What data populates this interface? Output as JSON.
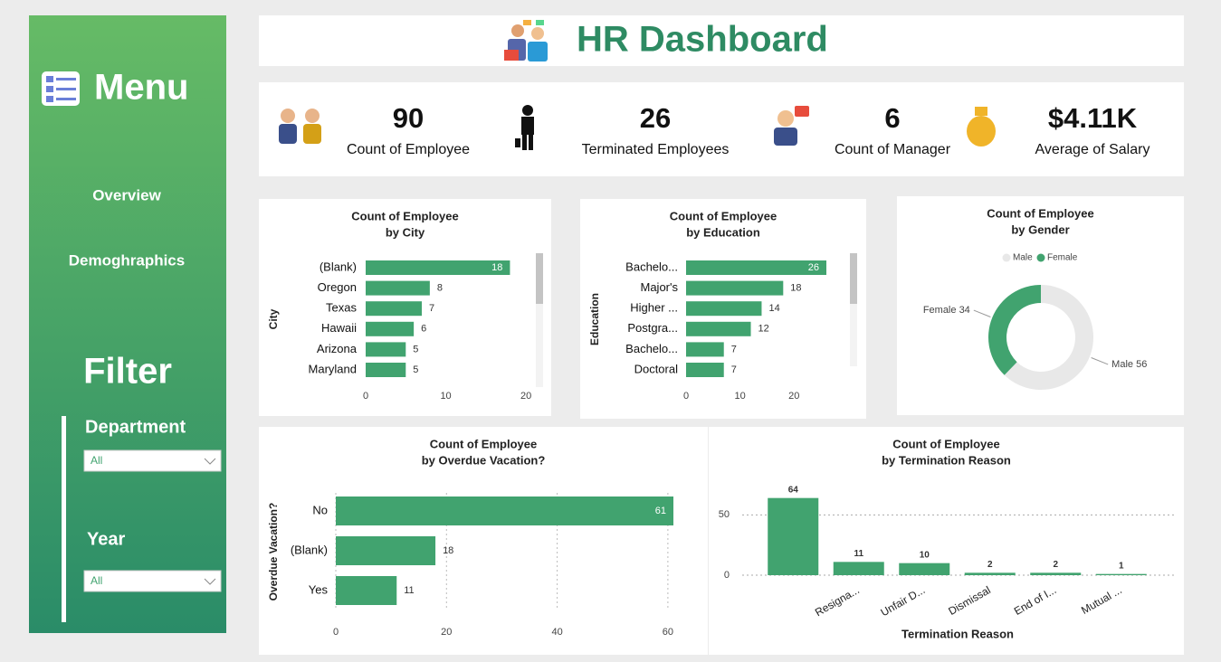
{
  "header": {
    "title": "HR Dashboard"
  },
  "menu": {
    "title": "Menu",
    "items": [
      "Overview",
      "Demoghraphics"
    ]
  },
  "filter": {
    "title": "Filter",
    "slicers": [
      {
        "label": "Department",
        "value": "All"
      },
      {
        "label": "Year",
        "value": "All"
      }
    ]
  },
  "kpis": [
    {
      "value": "90",
      "label": "Count of Employee"
    },
    {
      "value": "26",
      "label": "Terminated Employees"
    },
    {
      "value": "6",
      "label": "Count of Manager"
    },
    {
      "value": "$4.11K",
      "label": "Average of Salary"
    }
  ],
  "chart_data": [
    {
      "type": "bar",
      "orientation": "horizontal",
      "title": "Count of Employee",
      "subtitle": "by City",
      "y_label": "City",
      "categories": [
        "(Blank)",
        "Oregon",
        "Texas",
        "Hawaii",
        "Arizona",
        "Maryland"
      ],
      "values": [
        18,
        8,
        7,
        6,
        5,
        5
      ],
      "xlim": [
        0,
        21
      ],
      "xticks": [
        0,
        10,
        20
      ],
      "color": "#41a36f",
      "grid": false
    },
    {
      "type": "bar",
      "orientation": "horizontal",
      "title": "Count of Employee",
      "subtitle": "by Education",
      "y_label": "Education",
      "categories": [
        "Bachelo...",
        "Major's",
        "Higher ...",
        "Postgra...",
        "Bachelo...",
        "Doctoral"
      ],
      "values": [
        26,
        18,
        14,
        12,
        7,
        7
      ],
      "xlim": [
        0,
        26
      ],
      "xticks": [
        0,
        10,
        20
      ],
      "color": "#41a36f",
      "grid": false
    },
    {
      "type": "pie",
      "donut": true,
      "title": "Count of Employee",
      "subtitle": "by Gender",
      "categories": [
        "Male",
        "Female"
      ],
      "values": [
        56,
        34
      ],
      "colors": [
        "#e8e8e8",
        "#41a36f"
      ],
      "legend": "top"
    },
    {
      "type": "bar",
      "orientation": "horizontal",
      "title": "Count of Employee",
      "subtitle": "by Overdue Vacation?",
      "y_label": "Overdue Vacation?",
      "categories": [
        "No",
        "(Blank)",
        "Yes"
      ],
      "values": [
        61,
        18,
        11
      ],
      "xlim": [
        0,
        61
      ],
      "xticks": [
        0,
        20,
        40,
        60
      ],
      "color": "#41a36f",
      "grid": true
    },
    {
      "type": "bar",
      "orientation": "vertical",
      "title": "Count of Employee",
      "subtitle": "by Termination Reason",
      "x_label": "Termination Reason",
      "categories": [
        null,
        "Resigna...",
        "Unfair D...",
        "Dismissal",
        "End of I...",
        "Mutual ..."
      ],
      "values": [
        64,
        11,
        10,
        2,
        2,
        1
      ],
      "ylim": [
        0,
        72
      ],
      "yticks": [
        0,
        50
      ],
      "color": "#41a36f",
      "grid": true
    }
  ]
}
